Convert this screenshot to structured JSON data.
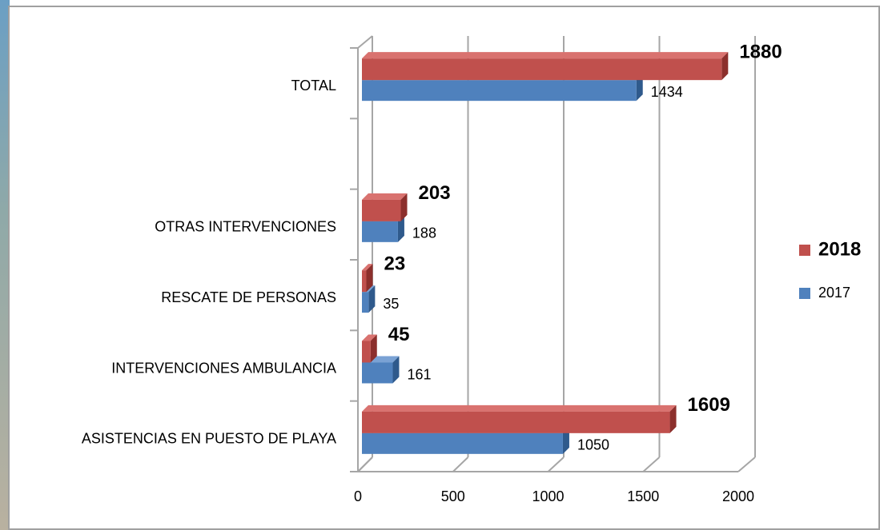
{
  "chart_data": {
    "type": "bar3d",
    "orientation": "horizontal",
    "categories": [
      "ASISTENCIAS EN PUESTO DE PLAYA",
      "INTERVENCIONES AMBULANCIA",
      "RESCATE DE PERSONAS",
      "OTRAS INTERVENCIONES",
      null,
      "TOTAL"
    ],
    "series": [
      {
        "name": "2017",
        "color": "#4f81bd",
        "values": [
          1050,
          161,
          35,
          188,
          null,
          1434
        ]
      },
      {
        "name": "2018",
        "color": "#c0504d",
        "values": [
          1609,
          45,
          23,
          203,
          null,
          1880
        ]
      }
    ],
    "xlim": [
      0,
      2000
    ],
    "xticks": [
      0,
      500,
      1000,
      1500,
      2000
    ],
    "grid": true,
    "legend": "right"
  }
}
